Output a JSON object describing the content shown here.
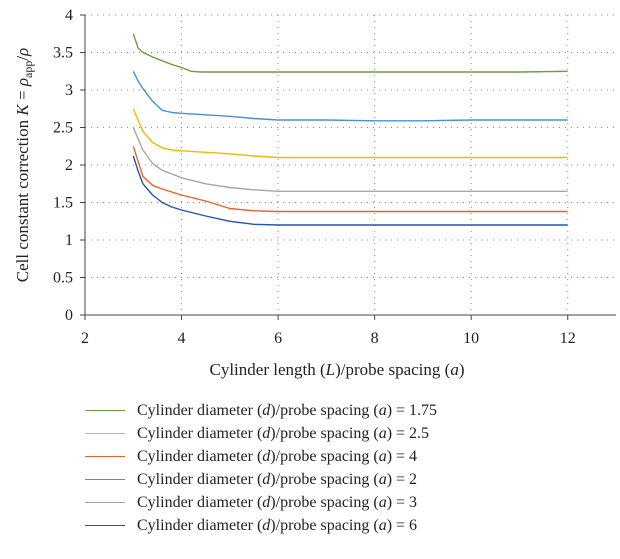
{
  "chart_data": {
    "type": "line",
    "xlabel": "Cylinder length (L)/probe spacing (a)",
    "ylabel": "Cell constant correction K = ρapp/ρ",
    "xlim": [
      2,
      13
    ],
    "ylim": [
      0,
      4
    ],
    "xticks": [
      2,
      4,
      6,
      8,
      10,
      12
    ],
    "yticks": [
      0,
      0.5,
      1,
      1.5,
      2,
      2.5,
      3,
      3.5,
      4
    ],
    "grid": "dotted",
    "legend_position": "bottom",
    "series": [
      {
        "name": "Cylinder diameter (d)/probe spacing (a) = 1.75",
        "color": "#6a9e3c",
        "x": [
          3,
          3.1,
          3.2,
          3.4,
          3.6,
          3.8,
          4,
          4.2,
          4.4,
          5,
          6,
          7,
          8,
          9,
          10,
          11,
          12
        ],
        "y": [
          3.75,
          3.56,
          3.5,
          3.44,
          3.39,
          3.34,
          3.3,
          3.25,
          3.24,
          3.24,
          3.24,
          3.24,
          3.24,
          3.24,
          3.24,
          3.24,
          3.25
        ]
      },
      {
        "name": "Cylinder diameter (d)/probe spacing (a) = 2.5",
        "color": "#f5b800",
        "x": [
          3,
          3.1,
          3.2,
          3.4,
          3.6,
          3.8,
          4,
          4.5,
          5,
          5.5,
          6,
          7,
          8,
          9,
          10,
          11,
          12
        ],
        "y": [
          2.75,
          2.6,
          2.45,
          2.3,
          2.23,
          2.2,
          2.19,
          2.17,
          2.15,
          2.12,
          2.1,
          2.1,
          2.1,
          2.1,
          2.1,
          2.1,
          2.1
        ]
      },
      {
        "name": "Cylinder diameter (d)/probe spacing (a) = 4",
        "color": "#e8632a",
        "x": [
          3,
          3.1,
          3.2,
          3.4,
          3.6,
          3.8,
          4,
          4.5,
          4.8,
          5,
          5.5,
          6,
          7,
          8,
          9,
          10,
          11,
          12
        ],
        "y": [
          2.25,
          2.05,
          1.85,
          1.73,
          1.68,
          1.64,
          1.6,
          1.52,
          1.46,
          1.42,
          1.39,
          1.38,
          1.38,
          1.38,
          1.38,
          1.38,
          1.38,
          1.38
        ]
      },
      {
        "name": "Cylinder diameter (d)/probe spacing (a) = 2",
        "color": "#4a8fd0",
        "x": [
          3,
          3.1,
          3.2,
          3.4,
          3.6,
          3.8,
          4,
          4.5,
          5,
          5.5,
          6,
          7,
          8,
          9,
          10,
          11,
          12
        ],
        "y": [
          3.25,
          3.12,
          3.02,
          2.85,
          2.73,
          2.7,
          2.69,
          2.67,
          2.65,
          2.62,
          2.6,
          2.6,
          2.59,
          2.59,
          2.6,
          2.6,
          2.6
        ]
      },
      {
        "name": "Cylinder diameter (d)/probe spacing (a) = 3",
        "color": "#a6a6a6",
        "x": [
          3,
          3.1,
          3.2,
          3.4,
          3.6,
          3.8,
          4,
          4.5,
          5,
          5.5,
          6,
          7,
          8,
          9,
          10,
          11,
          12
        ],
        "y": [
          2.5,
          2.35,
          2.2,
          2.02,
          1.93,
          1.88,
          1.83,
          1.75,
          1.7,
          1.67,
          1.65,
          1.65,
          1.65,
          1.65,
          1.65,
          1.65,
          1.65
        ]
      },
      {
        "name": "Cylinder diameter (d)/probe spacing (a) = 6",
        "color": "#2452b0",
        "x": [
          3,
          3.1,
          3.2,
          3.4,
          3.6,
          3.8,
          4,
          4.5,
          5,
          5.5,
          6,
          7,
          8,
          9,
          10,
          11,
          12
        ],
        "y": [
          2.12,
          1.92,
          1.75,
          1.6,
          1.5,
          1.44,
          1.4,
          1.32,
          1.25,
          1.21,
          1.2,
          1.2,
          1.2,
          1.2,
          1.2,
          1.2,
          1.2
        ]
      }
    ]
  }
}
